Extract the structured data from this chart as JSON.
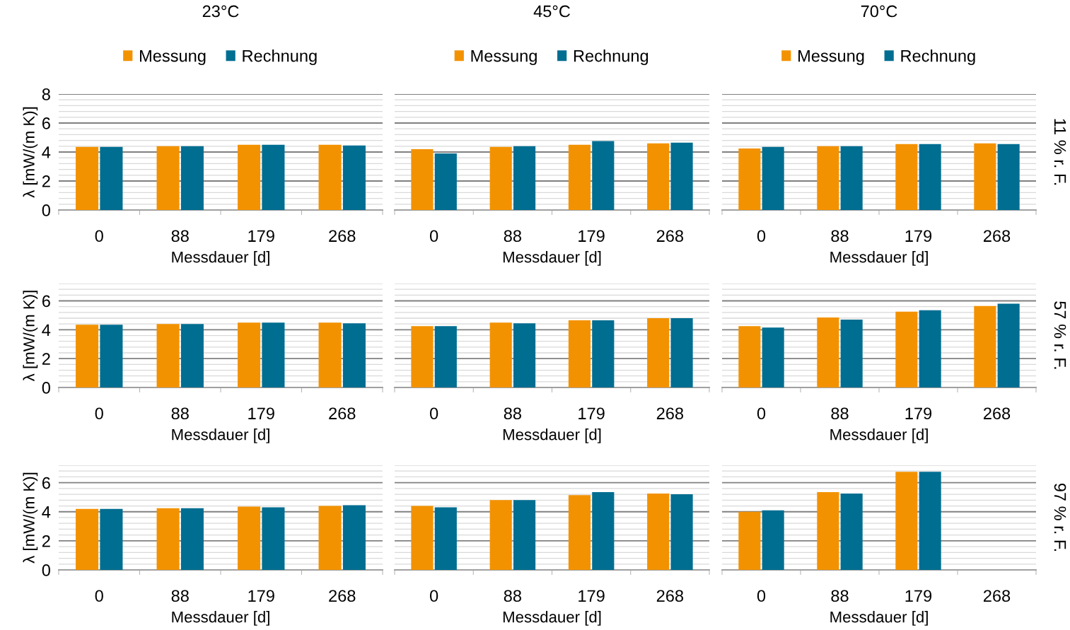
{
  "chart_data": [
    {
      "type": "bar",
      "title": "23°C",
      "categories": [
        "0",
        "88",
        "179",
        "268"
      ],
      "xlabel": "Messdauer [d]",
      "ylabel": "λ [mW/(m K)]",
      "ylim": [
        0,
        8
      ],
      "yticks": [
        0,
        {
          "value": 0.4,
          "label": null
        },
        {
          "value": 0.8,
          "label": null
        },
        {
          "value": 1.2,
          "label": null
        },
        {
          "value": 1.6,
          "label": null
        },
        2,
        {
          "value": 2.4,
          "label": null
        },
        {
          "value": 2.8,
          "label": null
        },
        {
          "value": 3.2,
          "label": null
        },
        {
          "value": 3.6,
          "label": null
        },
        4,
        {
          "value": 4.4,
          "label": null
        },
        {
          "value": 4.8,
          "label": null
        },
        {
          "value": 5.2,
          "label": null
        },
        {
          "value": 5.6,
          "label": null
        },
        6,
        {
          "value": 6.4,
          "label": null
        },
        {
          "value": 6.8,
          "label": null
        },
        {
          "value": 7.2,
          "label": null
        },
        {
          "value": 7.6,
          "label": null
        },
        8
      ],
      "grid": "y",
      "legend": "top",
      "series": [
        {
          "name": "Messung",
          "color": "#f39200",
          "values": [
            4.35,
            4.4,
            4.5,
            4.5
          ]
        },
        {
          "name": "Rechnung",
          "color": "#006e91",
          "values": [
            4.35,
            4.4,
            4.5,
            4.45
          ]
        }
      ]
    },
    {
      "type": "bar",
      "title": "45°C",
      "categories": [
        "0",
        "88",
        "179",
        "268"
      ],
      "xlabel": "Messdauer [d]",
      "ylim": [
        0,
        8
      ],
      "yticks": [
        0,
        {
          "value": 0.4,
          "label": null
        },
        {
          "value": 0.8,
          "label": null
        },
        {
          "value": 1.2,
          "label": null
        },
        {
          "value": 1.6,
          "label": null
        },
        2,
        {
          "value": 2.4,
          "label": null
        },
        {
          "value": 2.8,
          "label": null
        },
        {
          "value": 3.2,
          "label": null
        },
        {
          "value": 3.6,
          "label": null
        },
        4,
        {
          "value": 4.4,
          "label": null
        },
        {
          "value": 4.8,
          "label": null
        },
        {
          "value": 5.2,
          "label": null
        },
        {
          "value": 5.6,
          "label": null
        },
        6,
        {
          "value": 6.4,
          "label": null
        },
        {
          "value": 6.8,
          "label": null
        },
        {
          "value": 7.2,
          "label": null
        },
        {
          "value": 7.6,
          "label": null
        },
        8
      ],
      "grid": "y",
      "legend": "top",
      "tick_labels": "x",
      "series": [
        {
          "name": "Messung",
          "color": "#f39200",
          "values": [
            4.2,
            4.35,
            4.5,
            4.6
          ]
        },
        {
          "name": "Rechnung",
          "color": "#006e91",
          "values": [
            3.9,
            4.4,
            4.75,
            4.65
          ]
        }
      ]
    },
    {
      "type": "bar",
      "title": "70°C",
      "categories": [
        "0",
        "88",
        "179",
        "268"
      ],
      "xlabel": "Messdauer [d]",
      "ylim": [
        0,
        8
      ],
      "yticks": [
        0,
        {
          "value": 0.4,
          "label": null
        },
        {
          "value": 0.8,
          "label": null
        },
        {
          "value": 1.2,
          "label": null
        },
        {
          "value": 1.6,
          "label": null
        },
        2,
        {
          "value": 2.4,
          "label": null
        },
        {
          "value": 2.8,
          "label": null
        },
        {
          "value": 3.2,
          "label": null
        },
        {
          "value": 3.6,
          "label": null
        },
        4,
        {
          "value": 4.4,
          "label": null
        },
        {
          "value": 4.8,
          "label": null
        },
        {
          "value": 5.2,
          "label": null
        },
        {
          "value": 5.6,
          "label": null
        },
        6,
        {
          "value": 6.4,
          "label": null
        },
        {
          "value": 6.8,
          "label": null
        },
        {
          "value": 7.2,
          "label": null
        },
        {
          "value": 7.6,
          "label": null
        },
        8
      ],
      "grid": "y",
      "legend": "top",
      "tick_labels": "x",
      "annotations": [
        "11 % r. F."
      ],
      "series": [
        {
          "name": "Messung",
          "color": "#f39200",
          "values": [
            4.25,
            4.4,
            4.55,
            4.6
          ]
        },
        {
          "name": "Rechnung",
          "color": "#006e91",
          "values": [
            4.35,
            4.4,
            4.55,
            4.55
          ]
        }
      ]
    },
    {
      "type": "bar",
      "categories": [
        "0",
        "88",
        "179",
        "268"
      ],
      "xlabel": "Messdauer [d]",
      "ylabel": "λ [mW/(m K)]",
      "ylim": [
        0,
        7.2
      ],
      "yticks": [
        0,
        {
          "value": 0.4,
          "label": null
        },
        {
          "value": 0.8,
          "label": null
        },
        {
          "value": 1.2,
          "label": null
        },
        {
          "value": 1.6,
          "label": null
        },
        2,
        {
          "value": 2.4,
          "label": null
        },
        {
          "value": 2.8,
          "label": null
        },
        {
          "value": 3.2,
          "label": null
        },
        {
          "value": 3.6,
          "label": null
        },
        4,
        {
          "value": 4.4,
          "label": null
        },
        {
          "value": 4.8,
          "label": null
        },
        {
          "value": 5.2,
          "label": null
        },
        {
          "value": 5.6,
          "label": null
        },
        6,
        {
          "value": 6.4,
          "label": null
        },
        {
          "value": 6.8,
          "label": null
        },
        {
          "value": 7.2,
          "label": null
        }
      ],
      "grid": "y",
      "series": [
        {
          "color": "#f39200",
          "values": [
            4.35,
            4.4,
            4.5,
            4.5
          ]
        },
        {
          "color": "#006e91",
          "values": [
            4.35,
            4.4,
            4.5,
            4.45
          ]
        }
      ]
    },
    {
      "type": "bar",
      "categories": [
        "0",
        "88",
        "179",
        "268"
      ],
      "xlabel": "Messdauer [d]",
      "ylim": [
        0,
        7.2
      ],
      "yticks": [
        0,
        {
          "value": 0.4,
          "label": null
        },
        {
          "value": 0.8,
          "label": null
        },
        {
          "value": 1.2,
          "label": null
        },
        {
          "value": 1.6,
          "label": null
        },
        2,
        {
          "value": 2.4,
          "label": null
        },
        {
          "value": 2.8,
          "label": null
        },
        {
          "value": 3.2,
          "label": null
        },
        {
          "value": 3.6,
          "label": null
        },
        4,
        {
          "value": 4.4,
          "label": null
        },
        {
          "value": 4.8,
          "label": null
        },
        {
          "value": 5.2,
          "label": null
        },
        {
          "value": 5.6,
          "label": null
        },
        6,
        {
          "value": 6.4,
          "label": null
        },
        {
          "value": 6.8,
          "label": null
        },
        {
          "value": 7.2,
          "label": null
        }
      ],
      "grid": "y",
      "tick_labels": "x",
      "series": [
        {
          "color": "#f39200",
          "values": [
            4.25,
            4.5,
            4.65,
            4.8
          ]
        },
        {
          "color": "#006e91",
          "values": [
            4.25,
            4.45,
            4.65,
            4.8
          ]
        }
      ]
    },
    {
      "type": "bar",
      "categories": [
        "0",
        "88",
        "179",
        "268"
      ],
      "xlabel": "Messdauer [d]",
      "ylim": [
        0,
        7.2
      ],
      "yticks": [
        0,
        {
          "value": 0.4,
          "label": null
        },
        {
          "value": 0.8,
          "label": null
        },
        {
          "value": 1.2,
          "label": null
        },
        {
          "value": 1.6,
          "label": null
        },
        2,
        {
          "value": 2.4,
          "label": null
        },
        {
          "value": 2.8,
          "label": null
        },
        {
          "value": 3.2,
          "label": null
        },
        {
          "value": 3.6,
          "label": null
        },
        4,
        {
          "value": 4.4,
          "label": null
        },
        {
          "value": 4.8,
          "label": null
        },
        {
          "value": 5.2,
          "label": null
        },
        {
          "value": 5.6,
          "label": null
        },
        6,
        {
          "value": 6.4,
          "label": null
        },
        {
          "value": 6.8,
          "label": null
        },
        {
          "value": 7.2,
          "label": null
        }
      ],
      "grid": "y",
      "tick_labels": "x",
      "annotations": [
        "57 % r. F."
      ],
      "series": [
        {
          "color": "#f39200",
          "values": [
            4.25,
            4.85,
            5.25,
            5.65
          ]
        },
        {
          "color": "#006e91",
          "values": [
            4.15,
            4.7,
            5.35,
            5.8
          ]
        }
      ]
    },
    {
      "type": "bar",
      "categories": [
        "0",
        "88",
        "179",
        "268"
      ],
      "xlabel": "Messdauer [d]",
      "ylabel": "λ [mW/(m K)]",
      "ylim": [
        0,
        7.2
      ],
      "yticks": [
        0,
        {
          "value": 0.4,
          "label": null
        },
        {
          "value": 0.8,
          "label": null
        },
        {
          "value": 1.2,
          "label": null
        },
        {
          "value": 1.6,
          "label": null
        },
        2,
        {
          "value": 2.4,
          "label": null
        },
        {
          "value": 2.8,
          "label": null
        },
        {
          "value": 3.2,
          "label": null
        },
        {
          "value": 3.6,
          "label": null
        },
        4,
        {
          "value": 4.4,
          "label": null
        },
        {
          "value": 4.8,
          "label": null
        },
        {
          "value": 5.2,
          "label": null
        },
        {
          "value": 5.6,
          "label": null
        },
        6,
        {
          "value": 6.4,
          "label": null
        },
        {
          "value": 6.8,
          "label": null
        },
        {
          "value": 7.2,
          "label": null
        }
      ],
      "grid": "y",
      "series": [
        {
          "color": "#f39200",
          "values": [
            4.2,
            4.25,
            4.35,
            4.4
          ]
        },
        {
          "color": "#006e91",
          "values": [
            4.2,
            4.25,
            4.3,
            4.45
          ]
        }
      ]
    },
    {
      "type": "bar",
      "categories": [
        "0",
        "88",
        "179",
        "268"
      ],
      "xlabel": "Messdauer [d]",
      "ylim": [
        0,
        7.2
      ],
      "yticks": [
        0,
        {
          "value": 0.4,
          "label": null
        },
        {
          "value": 0.8,
          "label": null
        },
        {
          "value": 1.2,
          "label": null
        },
        {
          "value": 1.6,
          "label": null
        },
        2,
        {
          "value": 2.4,
          "label": null
        },
        {
          "value": 2.8,
          "label": null
        },
        {
          "value": 3.2,
          "label": null
        },
        {
          "value": 3.6,
          "label": null
        },
        4,
        {
          "value": 4.4,
          "label": null
        },
        {
          "value": 4.8,
          "label": null
        },
        {
          "value": 5.2,
          "label": null
        },
        {
          "value": 5.6,
          "label": null
        },
        6,
        {
          "value": 6.4,
          "label": null
        },
        {
          "value": 6.8,
          "label": null
        },
        {
          "value": 7.2,
          "label": null
        }
      ],
      "grid": "y",
      "tick_labels": "x",
      "series": [
        {
          "color": "#f39200",
          "values": [
            4.4,
            4.8,
            5.15,
            5.25
          ]
        },
        {
          "color": "#006e91",
          "values": [
            4.3,
            4.8,
            5.35,
            5.2
          ]
        }
      ]
    },
    {
      "type": "bar",
      "categories": [
        "0",
        "88",
        "179",
        "268"
      ],
      "xlabel": "Messdauer [d]",
      "ylim": [
        0,
        7.2
      ],
      "yticks": [
        0,
        {
          "value": 0.4,
          "label": null
        },
        {
          "value": 0.8,
          "label": null
        },
        {
          "value": 1.2,
          "label": null
        },
        {
          "value": 1.6,
          "label": null
        },
        2,
        {
          "value": 2.4,
          "label": null
        },
        {
          "value": 2.8,
          "label": null
        },
        {
          "value": 3.2,
          "label": null
        },
        {
          "value": 3.6,
          "label": null
        },
        4,
        {
          "value": 4.4,
          "label": null
        },
        {
          "value": 4.8,
          "label": null
        },
        {
          "value": 5.2,
          "label": null
        },
        {
          "value": 5.6,
          "label": null
        },
        6,
        {
          "value": 6.4,
          "label": null
        },
        {
          "value": 6.8,
          "label": null
        },
        {
          "value": 7.2,
          "label": null
        }
      ],
      "grid": "y",
      "tick_labels": "x",
      "annotations": [
        "97 % r. F."
      ],
      "series": [
        {
          "color": "#f39200",
          "values": [
            4.0,
            5.35,
            6.75,
            null
          ]
        },
        {
          "color": "#006e91",
          "values": [
            4.1,
            5.25,
            6.75,
            null
          ]
        }
      ]
    }
  ]
}
